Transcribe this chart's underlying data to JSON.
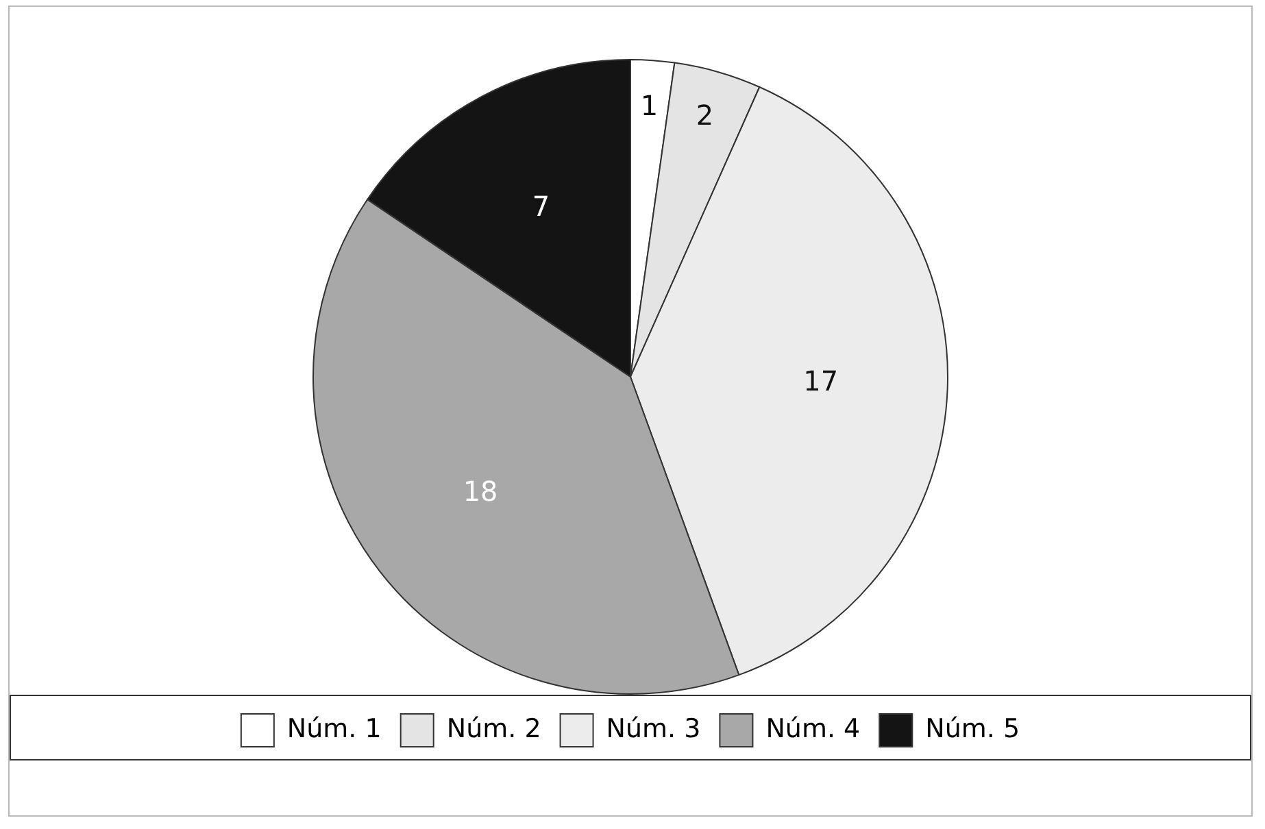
{
  "chart_data": {
    "type": "pie",
    "categories": [
      "Núm. 1",
      "Núm. 2",
      "Núm. 3",
      "Núm. 4",
      "Núm. 5"
    ],
    "values": [
      1,
      2,
      17,
      18,
      7
    ],
    "colors": [
      "#ffffff",
      "#e4e4e4",
      "#ececec",
      "#a8a8a8",
      "#141414"
    ],
    "data_labels": true,
    "legend": "bottom"
  }
}
